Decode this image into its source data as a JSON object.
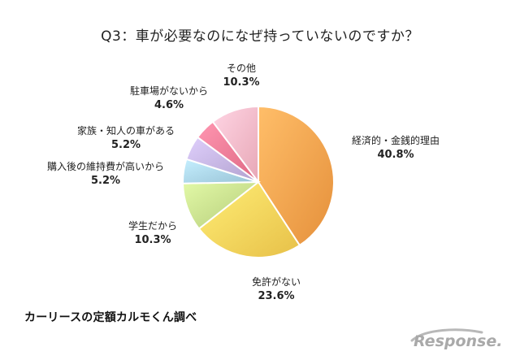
{
  "chart_data": {
    "type": "pie",
    "title": "Q3：車が必要なのになぜ持っていないのですか？",
    "slices": [
      {
        "label": "経済的・金銭的理由",
        "value": 40.8,
        "value_label": "40.8%",
        "color": "#f7a24d"
      },
      {
        "label": "免許がない",
        "value": 23.6,
        "value_label": "23.6%",
        "color": "#f9d25a"
      },
      {
        "label": "学生だから",
        "value": 10.3,
        "value_label": "10.3%",
        "color": "#c6dd8b"
      },
      {
        "label": "購入後の維持費が高いから",
        "value": 5.2,
        "value_label": "5.2%",
        "color": "#a9d3e6"
      },
      {
        "label": "家族・知人の車がある",
        "value": 5.2,
        "value_label": "5.2%",
        "color": "#c3b3e0"
      },
      {
        "label": "駐車場がないから",
        "value": 4.6,
        "value_label": "4.6%",
        "color": "#f07a95"
      },
      {
        "label": "その他",
        "value": 10.3,
        "value_label": "10.3%",
        "color": "#f9b9c8"
      }
    ]
  },
  "footer": {
    "source": "カーリースの定額カルモくん調べ",
    "logo_text": "Response."
  }
}
